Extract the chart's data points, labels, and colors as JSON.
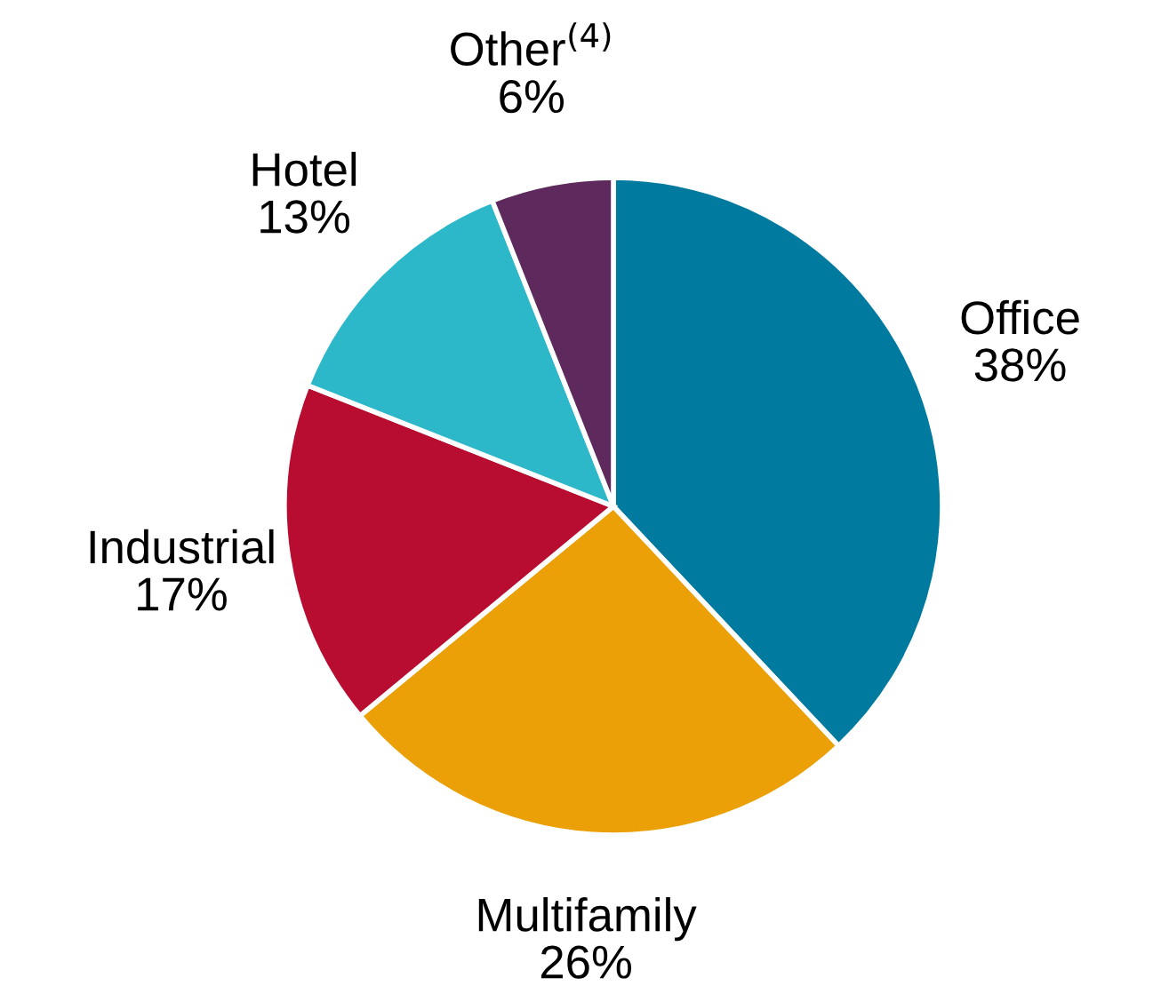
{
  "chart_data": {
    "type": "pie",
    "categories": [
      "Office",
      "Multifamily",
      "Industrial",
      "Hotel",
      "Other$^{(4)}$"
    ],
    "values": [
      38,
      26,
      17,
      13,
      6
    ],
    "value_labels": [
      "38%",
      "26%",
      "17%",
      "13%",
      "6%"
    ],
    "colors": [
      "#007a9e",
      "#eca008",
      "#b80d30",
      "#2cb8c9",
      "#5e2a5e"
    ],
    "legend": false
  }
}
